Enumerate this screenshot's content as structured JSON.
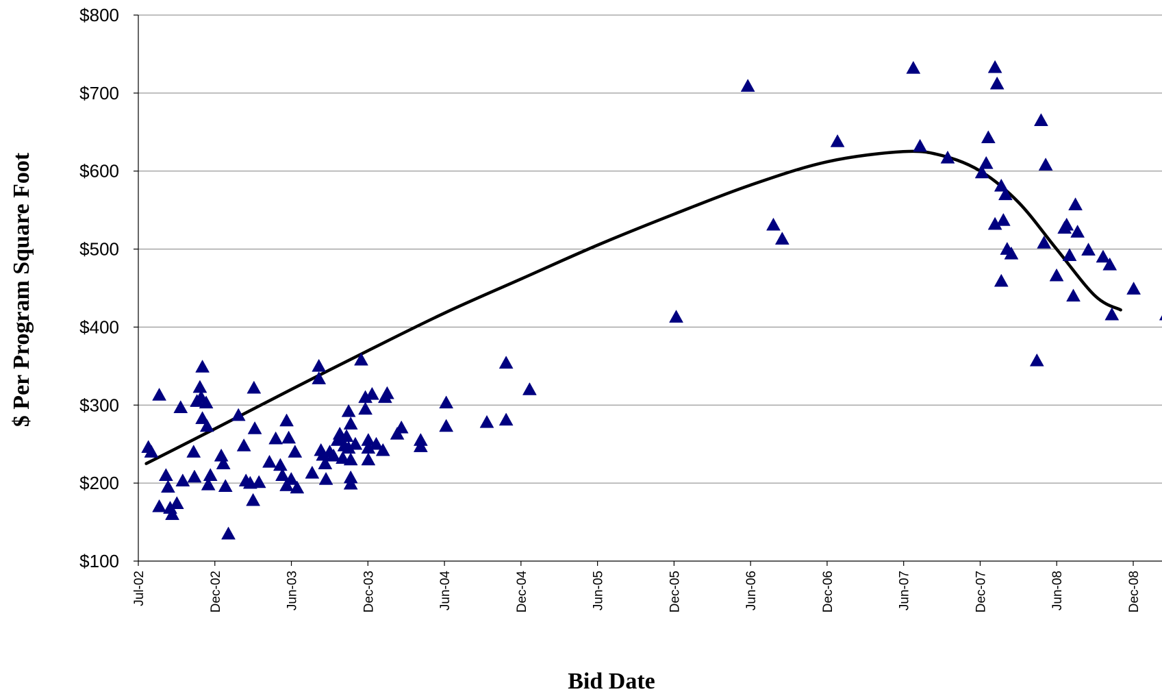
{
  "chart_data": {
    "type": "scatter",
    "title": "",
    "xlabel": "Bid Date",
    "ylabel": "$ Per Program Square Foot",
    "x_axis": {
      "type": "date",
      "range": [
        "2002-07-01",
        "2008-12-31"
      ],
      "ticks": [
        "Jul-02",
        "Dec-02",
        "Jun-03",
        "Dec-03",
        "Jun-04",
        "Dec-04",
        "Jun-05",
        "Dec-05",
        "Jun-06",
        "Dec-06",
        "Jun-07",
        "Dec-07",
        "Jun-08",
        "Dec-08"
      ]
    },
    "y_axis": {
      "range": [
        100,
        800
      ],
      "ticks": [
        100,
        200,
        300,
        400,
        500,
        600,
        700,
        800
      ],
      "tick_labels": [
        "$100",
        "$200",
        "$300",
        "$400",
        "$500",
        "$600",
        "$700",
        "$800"
      ]
    },
    "grid": "horizontal",
    "marker": {
      "shape": "triangle",
      "color": "#000080"
    },
    "trendline": {
      "color": "#000000",
      "points": [
        [
          "2002-07-20",
          225
        ],
        [
          "2003-01-01",
          270
        ],
        [
          "2003-07-01",
          320
        ],
        [
          "2004-01-01",
          370
        ],
        [
          "2004-07-01",
          418
        ],
        [
          "2005-01-01",
          462
        ],
        [
          "2005-07-01",
          505
        ],
        [
          "2006-01-01",
          545
        ],
        [
          "2006-07-01",
          582
        ],
        [
          "2007-01-01",
          612
        ],
        [
          "2007-07-01",
          625
        ],
        [
          "2007-10-01",
          620
        ],
        [
          "2008-01-01",
          600
        ],
        [
          "2008-04-01",
          560
        ],
        [
          "2008-07-01",
          500
        ],
        [
          "2008-10-01",
          440
        ],
        [
          "2008-12-01",
          422
        ]
      ]
    },
    "series": [
      {
        "points": [
          [
            "2002-07-25",
            246
          ],
          [
            "2002-08-01",
            240
          ],
          [
            "2002-08-20",
            313
          ],
          [
            "2002-08-20",
            170
          ],
          [
            "2002-09-05",
            210
          ],
          [
            "2002-09-10",
            195
          ],
          [
            "2002-09-15",
            168
          ],
          [
            "2002-09-20",
            160
          ],
          [
            "2002-10-01",
            174
          ],
          [
            "2002-10-10",
            297
          ],
          [
            "2002-10-15",
            203
          ],
          [
            "2002-11-10",
            240
          ],
          [
            "2002-11-12",
            208
          ],
          [
            "2002-11-18",
            305
          ],
          [
            "2002-11-25",
            323
          ],
          [
            "2002-11-28",
            310
          ],
          [
            "2002-12-01",
            349
          ],
          [
            "2002-12-01",
            283
          ],
          [
            "2002-12-10",
            303
          ],
          [
            "2002-12-12",
            273
          ],
          [
            "2002-12-15",
            198
          ],
          [
            "2002-12-20",
            210
          ],
          [
            "2003-01-15",
            235
          ],
          [
            "2003-01-20",
            225
          ],
          [
            "2003-01-25",
            196
          ],
          [
            "2003-02-01",
            135
          ],
          [
            "2003-02-25",
            287
          ],
          [
            "2003-03-10",
            248
          ],
          [
            "2003-03-15",
            203
          ],
          [
            "2003-03-25",
            200
          ],
          [
            "2003-04-01",
            178
          ],
          [
            "2003-04-03",
            322
          ],
          [
            "2003-04-05",
            270
          ],
          [
            "2003-04-15",
            201
          ],
          [
            "2003-05-10",
            227
          ],
          [
            "2003-05-25",
            257
          ],
          [
            "2003-06-05",
            223
          ],
          [
            "2003-06-10",
            210
          ],
          [
            "2003-06-20",
            280
          ],
          [
            "2003-06-20",
            197
          ],
          [
            "2003-06-25",
            258
          ],
          [
            "2003-07-01",
            205
          ],
          [
            "2003-07-10",
            240
          ],
          [
            "2003-07-15",
            194
          ],
          [
            "2003-08-20",
            213
          ],
          [
            "2003-09-05",
            350
          ],
          [
            "2003-09-05",
            334
          ],
          [
            "2003-09-10",
            242
          ],
          [
            "2003-09-15",
            236
          ],
          [
            "2003-09-20",
            225
          ],
          [
            "2003-09-22",
            205
          ],
          [
            "2003-10-01",
            240
          ],
          [
            "2003-10-10",
            235
          ],
          [
            "2003-10-20",
            255
          ],
          [
            "2003-10-25",
            263
          ],
          [
            "2003-11-01",
            232
          ],
          [
            "2003-11-05",
            248
          ],
          [
            "2003-11-10",
            260
          ],
          [
            "2003-11-15",
            292
          ],
          [
            "2003-11-15",
            245
          ],
          [
            "2003-11-20",
            276
          ],
          [
            "2003-11-20",
            230
          ],
          [
            "2003-11-20",
            207
          ],
          [
            "2003-11-20",
            199
          ],
          [
            "2003-12-01",
            250
          ],
          [
            "2003-12-15",
            358
          ],
          [
            "2003-12-25",
            295
          ],
          [
            "2003-12-25",
            310
          ],
          [
            "2004-01-01",
            255
          ],
          [
            "2004-01-01",
            245
          ],
          [
            "2004-01-01",
            230
          ],
          [
            "2004-01-10",
            314
          ],
          [
            "2004-01-20",
            250
          ],
          [
            "2004-02-05",
            242
          ],
          [
            "2004-02-10",
            310
          ],
          [
            "2004-02-15",
            315
          ],
          [
            "2004-03-10",
            263
          ],
          [
            "2004-03-20",
            271
          ],
          [
            "2004-05-05",
            255
          ],
          [
            "2004-05-05",
            247
          ],
          [
            "2004-07-05",
            303
          ],
          [
            "2004-07-05",
            273
          ],
          [
            "2004-10-10",
            278
          ],
          [
            "2004-11-25",
            354
          ],
          [
            "2004-11-25",
            281
          ],
          [
            "2005-01-20",
            320
          ],
          [
            "2006-01-05",
            413
          ],
          [
            "2006-06-25",
            709
          ],
          [
            "2006-08-25",
            531
          ],
          [
            "2006-09-15",
            513
          ],
          [
            "2007-01-25",
            638
          ],
          [
            "2007-07-25",
            732
          ],
          [
            "2007-08-10",
            632
          ],
          [
            "2007-10-15",
            617
          ],
          [
            "2008-01-05",
            598
          ],
          [
            "2008-01-15",
            610
          ],
          [
            "2008-01-20",
            643
          ],
          [
            "2008-02-05",
            532
          ],
          [
            "2008-02-05",
            733
          ],
          [
            "2008-02-10",
            712
          ],
          [
            "2008-02-20",
            581
          ],
          [
            "2008-02-20",
            459
          ],
          [
            "2008-02-25",
            537
          ],
          [
            "2008-03-01",
            570
          ],
          [
            "2008-03-05",
            500
          ],
          [
            "2008-03-15",
            494
          ],
          [
            "2008-05-15",
            357
          ],
          [
            "2008-05-25",
            665
          ],
          [
            "2008-06-01",
            508
          ],
          [
            "2008-06-05",
            608
          ],
          [
            "2008-07-01",
            466
          ],
          [
            "2008-07-20",
            527
          ],
          [
            "2008-07-25",
            531
          ],
          [
            "2008-08-01",
            492
          ],
          [
            "2008-08-10",
            440
          ],
          [
            "2008-08-15",
            557
          ],
          [
            "2008-08-20",
            522
          ],
          [
            "2008-09-15",
            499
          ],
          [
            "2008-10-20",
            490
          ],
          [
            "2008-11-05",
            480
          ],
          [
            "2008-11-10",
            416
          ],
          [
            "2009-01-01",
            449
          ],
          [
            "2009-03-20",
            416
          ]
        ]
      }
    ]
  }
}
